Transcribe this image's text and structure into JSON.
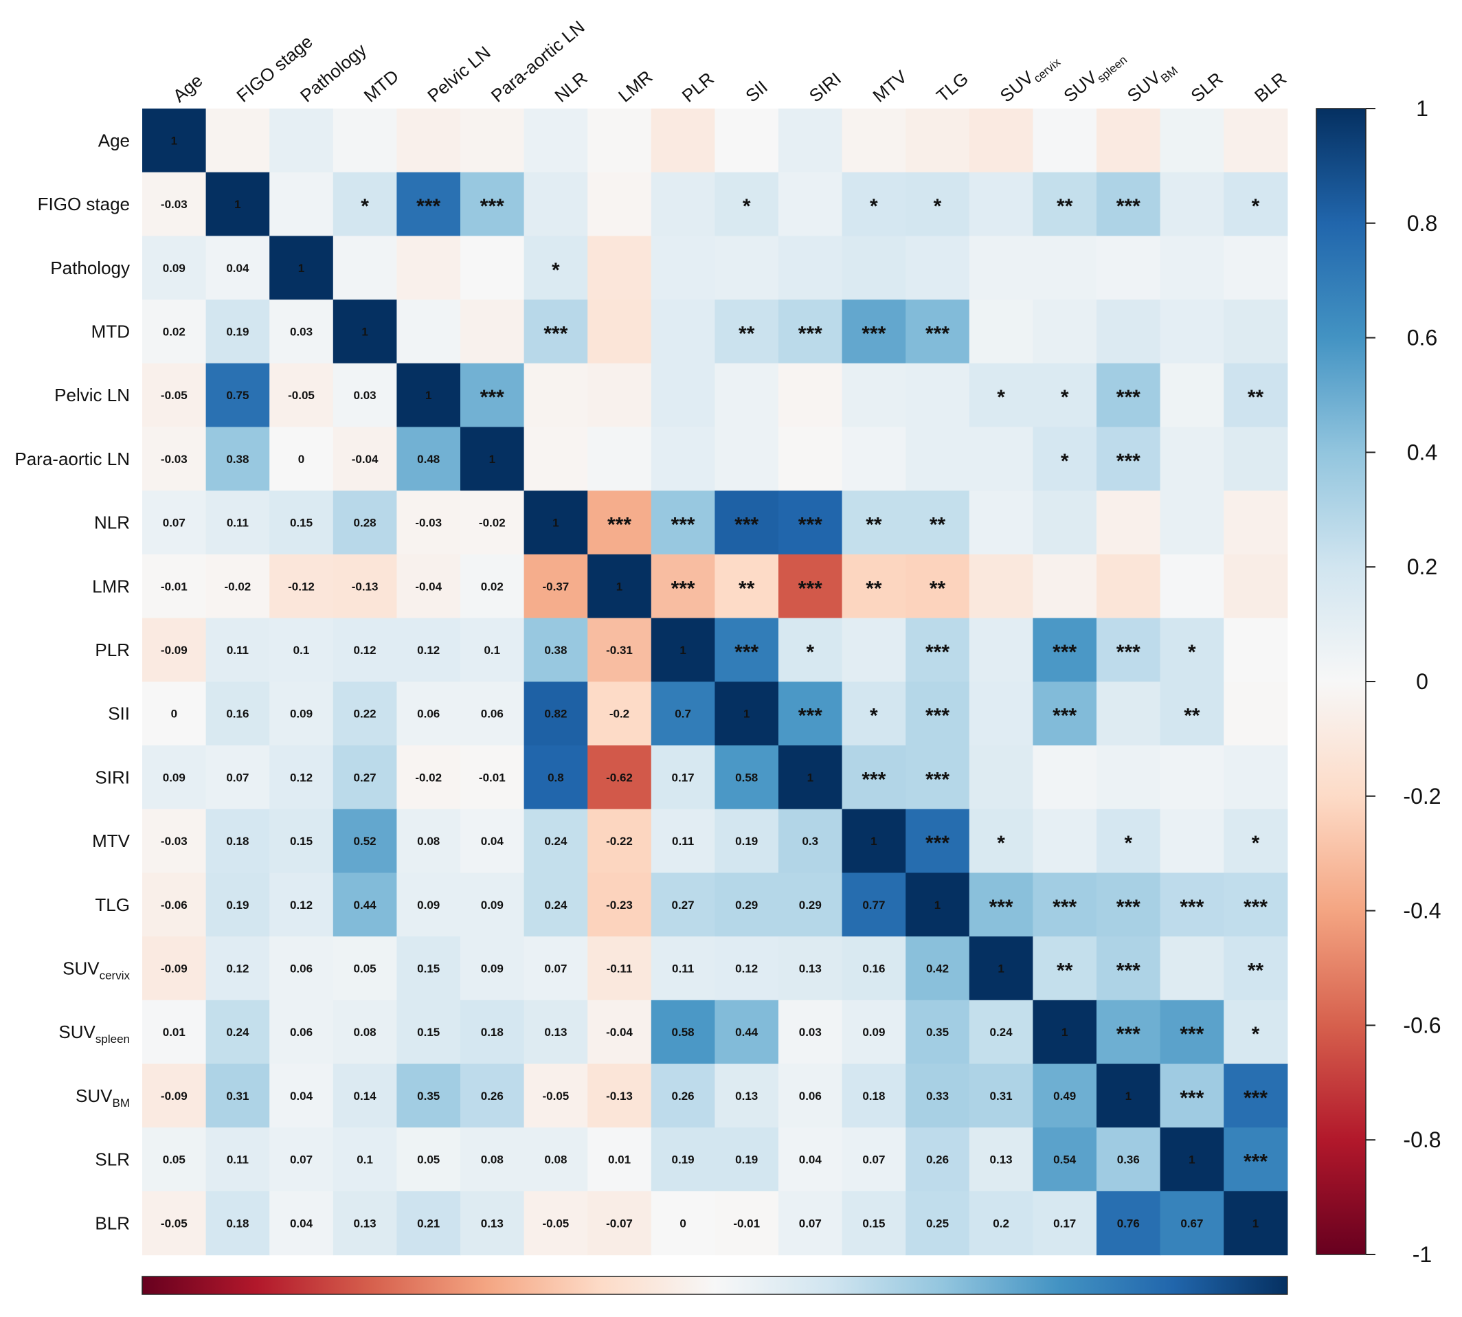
{
  "chart_data": {
    "type": "heatmap",
    "variables": [
      {
        "label": "Age",
        "sub": ""
      },
      {
        "label": "FIGO stage",
        "sub": ""
      },
      {
        "label": "Pathology",
        "sub": ""
      },
      {
        "label": "MTD",
        "sub": ""
      },
      {
        "label": "Pelvic LN",
        "sub": ""
      },
      {
        "label": "Para-aortic LN",
        "sub": ""
      },
      {
        "label": "NLR",
        "sub": ""
      },
      {
        "label": "LMR",
        "sub": ""
      },
      {
        "label": "PLR",
        "sub": ""
      },
      {
        "label": "SII",
        "sub": ""
      },
      {
        "label": "SIRI",
        "sub": ""
      },
      {
        "label": "MTV",
        "sub": ""
      },
      {
        "label": "TLG",
        "sub": ""
      },
      {
        "label": "SUV",
        "sub": "cervix"
      },
      {
        "label": "SUV",
        "sub": "spleen"
      },
      {
        "label": "SUV",
        "sub": "BM"
      },
      {
        "label": "SLR",
        "sub": ""
      },
      {
        "label": "BLR",
        "sub": ""
      }
    ],
    "lower_triangle_labels": [
      [
        "1"
      ],
      [
        "-0.03",
        "1"
      ],
      [
        "0.09",
        "0.04",
        "1"
      ],
      [
        "0.02",
        "0.19",
        "0.03",
        "1"
      ],
      [
        "-0.05",
        "0.75",
        "-0.05",
        "0.03",
        "1"
      ],
      [
        "-0.03",
        "0.38",
        "0",
        "-0.04",
        "0.48",
        "1"
      ],
      [
        "0.07",
        "0.11",
        "0.15",
        "0.28",
        "-0.03",
        "-0.02",
        "1"
      ],
      [
        "-0.01",
        "-0.02",
        "-0.12",
        "-0.13",
        "-0.04",
        "0.02",
        "-0.37",
        "1"
      ],
      [
        "-0.09",
        "0.11",
        "0.1",
        "0.12",
        "0.12",
        "0.1",
        "0.38",
        "-0.31",
        "1"
      ],
      [
        "0",
        "0.16",
        "0.09",
        "0.22",
        "0.06",
        "0.06",
        "0.82",
        "-0.2",
        "0.7",
        "1"
      ],
      [
        "0.09",
        "0.07",
        "0.12",
        "0.27",
        "-0.02",
        "-0.01",
        "0.8",
        "-0.62",
        "0.17",
        "0.58",
        "1"
      ],
      [
        "-0.03",
        "0.18",
        "0.15",
        "0.52",
        "0.08",
        "0.04",
        "0.24",
        "-0.22",
        "0.11",
        "0.19",
        "0.3",
        "1"
      ],
      [
        "-0.06",
        "0.19",
        "0.12",
        "0.44",
        "0.09",
        "0.09",
        "0.24",
        "-0.23",
        "0.27",
        "0.29",
        "0.29",
        "0.77",
        "1"
      ],
      [
        "-0.09",
        "0.12",
        "0.06",
        "0.05",
        "0.15",
        "0.09",
        "0.07",
        "-0.11",
        "0.11",
        "0.12",
        "0.13",
        "0.16",
        "0.42",
        "1"
      ],
      [
        "0.01",
        "0.24",
        "0.06",
        "0.08",
        "0.15",
        "0.18",
        "0.13",
        "-0.04",
        "0.58",
        "0.44",
        "0.03",
        "0.09",
        "0.35",
        "0.24",
        "1"
      ],
      [
        "-0.09",
        "0.31",
        "0.04",
        "0.14",
        "0.35",
        "0.26",
        "-0.05",
        "-0.13",
        "0.26",
        "0.13",
        "0.06",
        "0.18",
        "0.33",
        "0.31",
        "0.49",
        "1"
      ],
      [
        "0.05",
        "0.11",
        "0.07",
        "0.1",
        "0.05",
        "0.08",
        "0.08",
        "0.01",
        "0.19",
        "0.19",
        "0.04",
        "0.07",
        "0.26",
        "0.13",
        "0.54",
        "0.36",
        "1"
      ],
      [
        "-0.05",
        "0.18",
        "0.04",
        "0.13",
        "0.21",
        "0.13",
        "-0.05",
        "-0.07",
        "0",
        "-0.01",
        "0.07",
        "0.15",
        "0.25",
        "0.2",
        "0.17",
        "0.76",
        "0.67",
        "1"
      ]
    ],
    "significance_upper": [
      {
        "row": 1,
        "col": 3,
        "stars": "*"
      },
      {
        "row": 1,
        "col": 4,
        "stars": "***"
      },
      {
        "row": 1,
        "col": 5,
        "stars": "***"
      },
      {
        "row": 1,
        "col": 9,
        "stars": "*"
      },
      {
        "row": 1,
        "col": 11,
        "stars": "*"
      },
      {
        "row": 1,
        "col": 12,
        "stars": "*"
      },
      {
        "row": 1,
        "col": 14,
        "stars": "**"
      },
      {
        "row": 1,
        "col": 15,
        "stars": "***"
      },
      {
        "row": 1,
        "col": 17,
        "stars": "*"
      },
      {
        "row": 2,
        "col": 6,
        "stars": "*"
      },
      {
        "row": 3,
        "col": 6,
        "stars": "***"
      },
      {
        "row": 3,
        "col": 9,
        "stars": "**"
      },
      {
        "row": 3,
        "col": 10,
        "stars": "***"
      },
      {
        "row": 3,
        "col": 11,
        "stars": "***"
      },
      {
        "row": 3,
        "col": 12,
        "stars": "***"
      },
      {
        "row": 4,
        "col": 5,
        "stars": "***"
      },
      {
        "row": 4,
        "col": 13,
        "stars": "*"
      },
      {
        "row": 4,
        "col": 14,
        "stars": "*"
      },
      {
        "row": 4,
        "col": 15,
        "stars": "***"
      },
      {
        "row": 4,
        "col": 17,
        "stars": "**"
      },
      {
        "row": 5,
        "col": 14,
        "stars": "*"
      },
      {
        "row": 5,
        "col": 15,
        "stars": "***"
      },
      {
        "row": 6,
        "col": 7,
        "stars": "***"
      },
      {
        "row": 6,
        "col": 8,
        "stars": "***"
      },
      {
        "row": 6,
        "col": 9,
        "stars": "***"
      },
      {
        "row": 6,
        "col": 10,
        "stars": "***"
      },
      {
        "row": 6,
        "col": 11,
        "stars": "**"
      },
      {
        "row": 6,
        "col": 12,
        "stars": "**"
      },
      {
        "row": 7,
        "col": 8,
        "stars": "***"
      },
      {
        "row": 7,
        "col": 9,
        "stars": "**"
      },
      {
        "row": 7,
        "col": 10,
        "stars": "***"
      },
      {
        "row": 7,
        "col": 11,
        "stars": "**"
      },
      {
        "row": 7,
        "col": 12,
        "stars": "**"
      },
      {
        "row": 8,
        "col": 9,
        "stars": "***"
      },
      {
        "row": 8,
        "col": 10,
        "stars": "*"
      },
      {
        "row": 8,
        "col": 12,
        "stars": "***"
      },
      {
        "row": 8,
        "col": 14,
        "stars": "***"
      },
      {
        "row": 8,
        "col": 15,
        "stars": "***"
      },
      {
        "row": 8,
        "col": 16,
        "stars": "*"
      },
      {
        "row": 9,
        "col": 10,
        "stars": "***"
      },
      {
        "row": 9,
        "col": 11,
        "stars": "*"
      },
      {
        "row": 9,
        "col": 12,
        "stars": "***"
      },
      {
        "row": 9,
        "col": 14,
        "stars": "***"
      },
      {
        "row": 9,
        "col": 16,
        "stars": "**"
      },
      {
        "row": 10,
        "col": 11,
        "stars": "***"
      },
      {
        "row": 10,
        "col": 12,
        "stars": "***"
      },
      {
        "row": 11,
        "col": 12,
        "stars": "***"
      },
      {
        "row": 11,
        "col": 13,
        "stars": "*"
      },
      {
        "row": 11,
        "col": 15,
        "stars": "*"
      },
      {
        "row": 11,
        "col": 17,
        "stars": "*"
      },
      {
        "row": 12,
        "col": 13,
        "stars": "***"
      },
      {
        "row": 12,
        "col": 14,
        "stars": "***"
      },
      {
        "row": 12,
        "col": 15,
        "stars": "***"
      },
      {
        "row": 12,
        "col": 16,
        "stars": "***"
      },
      {
        "row": 12,
        "col": 17,
        "stars": "***"
      },
      {
        "row": 13,
        "col": 14,
        "stars": "**"
      },
      {
        "row": 13,
        "col": 15,
        "stars": "***"
      },
      {
        "row": 13,
        "col": 17,
        "stars": "**"
      },
      {
        "row": 14,
        "col": 15,
        "stars": "***"
      },
      {
        "row": 14,
        "col": 16,
        "stars": "***"
      },
      {
        "row": 14,
        "col": 17,
        "stars": "*"
      },
      {
        "row": 15,
        "col": 16,
        "stars": "***"
      },
      {
        "row": 15,
        "col": 17,
        "stars": "***"
      },
      {
        "row": 16,
        "col": 17,
        "stars": "***"
      }
    ],
    "colorbar_ticks": [
      "1",
      "0.8",
      "0.6",
      "0.4",
      "0.2",
      "0",
      "-0.2",
      "-0.4",
      "-0.6",
      "-0.8",
      "-1"
    ],
    "color_range": [
      -1,
      1
    ],
    "colorscale": [
      "#67001f",
      "#b2182b",
      "#d6604d",
      "#f4a582",
      "#fddbc7",
      "#f7f7f7",
      "#d1e5f0",
      "#92c5de",
      "#4393c3",
      "#2166ac",
      "#053061"
    ]
  }
}
